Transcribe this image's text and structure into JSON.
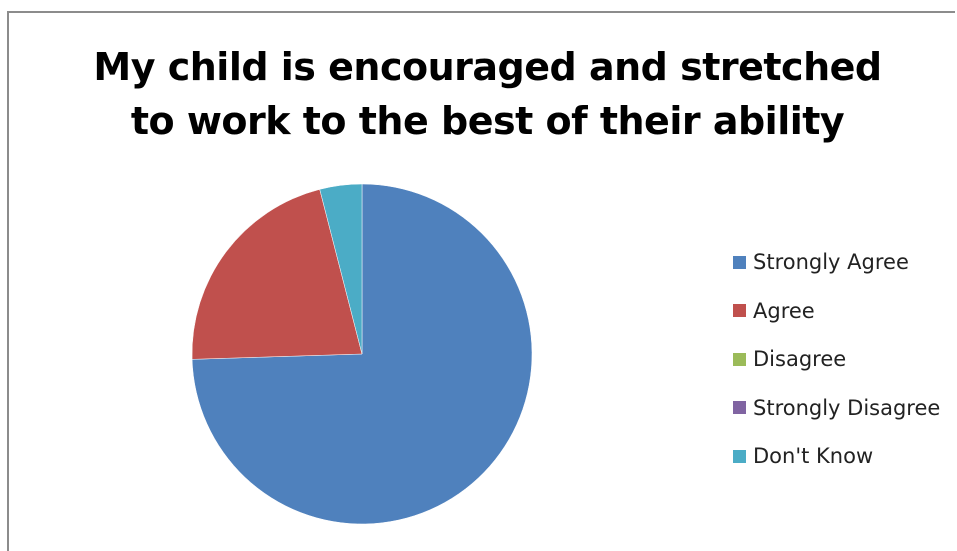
{
  "chart_data": {
    "type": "pie",
    "title_lines": [
      "My child is encouraged and stretched",
      "to work to the best of their ability"
    ],
    "categories": [
      "Strongly Agree",
      "Agree",
      "Disagree",
      "Strongly Disagree",
      "Don't Know"
    ],
    "values": [
      74.5,
      21.5,
      0,
      0,
      4
    ],
    "colors": [
      "#4f81bd",
      "#c0504d",
      "#9bbb59",
      "#8064a2",
      "#4bacc6"
    ],
    "legend_position": "right"
  }
}
